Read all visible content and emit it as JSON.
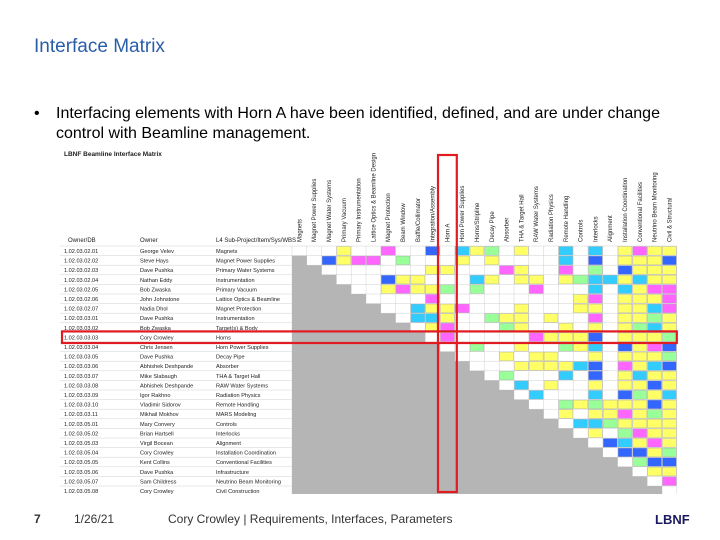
{
  "slide": {
    "title": "Interface Matrix",
    "bullet": "Interfacing elements with Horn A have been identified, defined, and are under change control with Beamline management."
  },
  "matrix": {
    "caption": "LBNF Beamline Interface Matrix",
    "left_headers": [
      "Owner/DB",
      "Owner",
      "L4 Sub-Project/Item/Sys/WBS"
    ],
    "columns": [
      "Magnets",
      "Magnet Power Supplies",
      "Magnet Water Systems",
      "Primary Vacuum",
      "Primary Instrumentation",
      "Lattice Optics & Beamline Design",
      "Magnet Protection",
      "Beam Window",
      "Baffle/Collimator",
      "Integration/Assembly",
      "Horn A",
      "Horn Power Supplies",
      "Horns/Stripline",
      "Decay Pipe",
      "Absorber",
      "THA & Target Hall",
      "RAW Water Systems",
      "Radiation Physics",
      "Remote Handling",
      "Controls",
      "Interlocks",
      "Alignment",
      "Installation Coordination",
      "Conventional Facilities",
      "Neutrino Beam Monitoring",
      "Civil & Structural"
    ],
    "rows": [
      {
        "owner_db": "1.02.03.02.01",
        "owner": "George Velev",
        "item": "Magnets"
      },
      {
        "owner_db": "1.02.03.02.02",
        "owner": "Steve Hays",
        "item": "Magnet Power Supplies"
      },
      {
        "owner_db": "1.02.03.02.03",
        "owner": "Dave Pushka",
        "item": "Primary Water Systems"
      },
      {
        "owner_db": "1.02.03.02.04",
        "owner": "Nathan Eddy",
        "item": "Instrumentation"
      },
      {
        "owner_db": "1.02.03.02.05",
        "owner": "Bob Zwaska",
        "item": "Primary Vacuum"
      },
      {
        "owner_db": "1.02.03.02.06",
        "owner": "John Johnstone",
        "item": "Lattice Optics & Beamline"
      },
      {
        "owner_db": "1.02.03.02.07",
        "owner": "Nadia Dhol",
        "item": "Magnet Protection"
      },
      {
        "owner_db": "1.02.03.03.01",
        "owner": "Dave Pushka",
        "item": "Instrumentation"
      },
      {
        "owner_db": "1.02.03.03.02",
        "owner": "Bob Zwaska",
        "item": "Target(s) & Body"
      },
      {
        "owner_db": "1.02.03.03.03",
        "owner": "Cory Crowley",
        "item": "Horns"
      },
      {
        "owner_db": "1.02.03.03.04",
        "owner": "Chris Jensen",
        "item": "Horn Power Supplies"
      },
      {
        "owner_db": "1.02.03.03.05",
        "owner": "Dave Pushka",
        "item": "Decay Pipe"
      },
      {
        "owner_db": "1.02.03.03.06",
        "owner": "Abhishek Deshpande",
        "item": "Absorber"
      },
      {
        "owner_db": "1.02.03.03.07",
        "owner": "Mike Slabaugh",
        "item": "THA & Target Hall"
      },
      {
        "owner_db": "1.02.03.03.08",
        "owner": "Abhishek Deshpande",
        "item": "RAW Water Systems"
      },
      {
        "owner_db": "1.02.03.03.09",
        "owner": "Igor Rakhno",
        "item": "Radiation Physics"
      },
      {
        "owner_db": "1.02.03.03.10",
        "owner": "Vladimir Sidorov",
        "item": "Remote Handling"
      },
      {
        "owner_db": "1.02.03.03.11",
        "owner": "Mikhail Mokhov",
        "item": "MARS Modeling"
      },
      {
        "owner_db": "1.02.03.05.01",
        "owner": "Mary Convery",
        "item": "Controls"
      },
      {
        "owner_db": "1.02.03.05.02",
        "owner": "Brian Hartsell",
        "item": "Interlocks"
      },
      {
        "owner_db": "1.02.03.05.03",
        "owner": "Virgil Bocean",
        "item": "Alignment"
      },
      {
        "owner_db": "1.02.03.05.04",
        "owner": "Cory Crowley",
        "item": "Installation Coordination"
      },
      {
        "owner_db": "1.02.03.05.05",
        "owner": "Kent Collins",
        "item": "Conventional Facilities"
      },
      {
        "owner_db": "1.02.03.05.06",
        "owner": "Dave Pushka",
        "item": "Infrastructure"
      },
      {
        "owner_db": "1.02.03.05.07",
        "owner": "Sam Childress",
        "item": "Neutrino Beam Monitoring"
      },
      {
        "owner_db": "1.02.03.05.08",
        "owner": "Cory Crowley",
        "item": "Civil Construction"
      }
    ],
    "colors": {
      "yellow": "#ffff66",
      "cyan": "#33ccff",
      "green": "#99ff99",
      "blue": "#3366ff",
      "magenta": "#ff66ff",
      "gray": "#b5b5b5",
      "highlight": "#e01b22"
    }
  },
  "footer": {
    "slide_number": "7",
    "date": "1/26/21",
    "center": "Cory Crowley | Requirements, Interfaces, Parameters",
    "logo": "LBNF"
  }
}
